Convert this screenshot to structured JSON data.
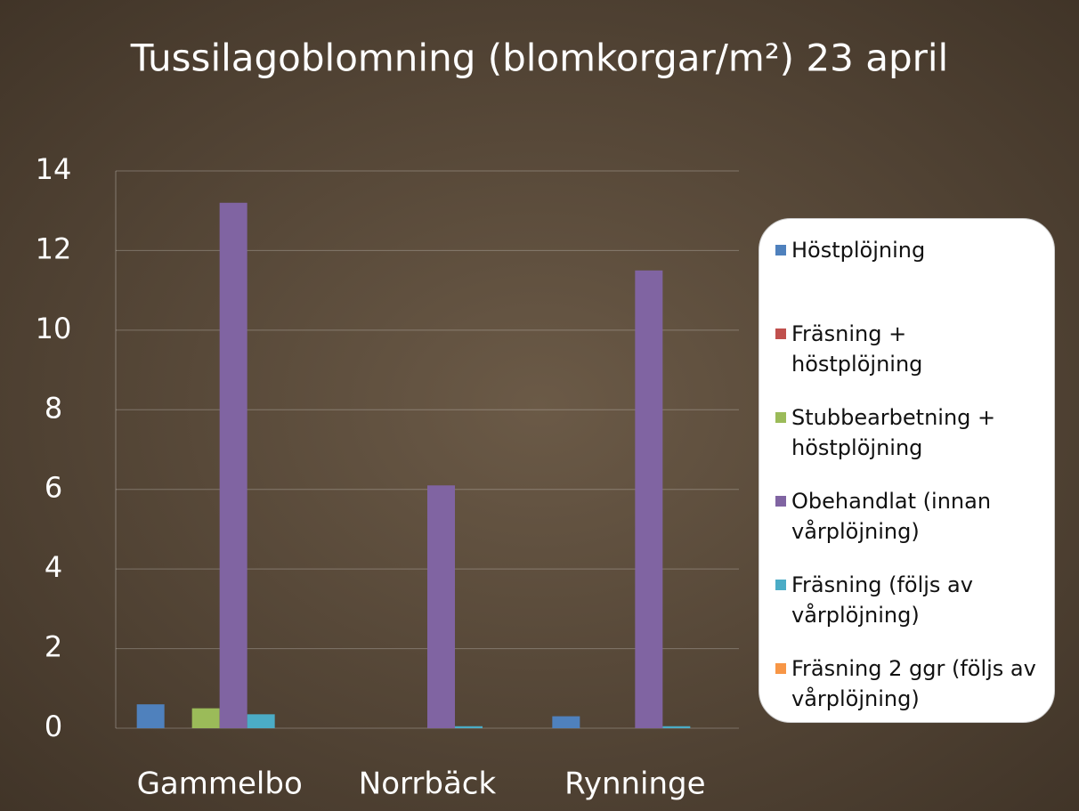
{
  "chart_data": {
    "type": "bar",
    "title": "Tussilagoblomning (blomkorgar/m²) 23 april",
    "categories": [
      "Gammelbo",
      "Norrbäck",
      "Rynninge"
    ],
    "series": [
      {
        "name": "Höstplöjning",
        "color": "#4f81bd",
        "values": [
          0.6,
          0,
          0.3
        ]
      },
      {
        "name": "Fräsning + höstplöjning",
        "color": "#c0504d",
        "values": [
          0,
          0,
          0
        ]
      },
      {
        "name": "Stubbearbetning + höstplöjning",
        "color": "#9bbb59",
        "values": [
          0.5,
          0,
          0
        ]
      },
      {
        "name": "Obehandlat (innan vårplöjning)",
        "color": "#8064a2",
        "values": [
          13.2,
          6.1,
          11.5
        ]
      },
      {
        "name": "Fräsning (följs av vårplöjning)",
        "color": "#4bacc6",
        "values": [
          0.35,
          0.05,
          0.05
        ]
      },
      {
        "name": "Fräsning 2 ggr (följs av vårplöjning)",
        "color": "#f79646",
        "values": [
          0,
          0,
          0
        ]
      }
    ],
    "ylim": [
      0,
      14
    ],
    "yticks": [
      0,
      2,
      4,
      6,
      8,
      10,
      12,
      14
    ],
    "grid": true,
    "legend": "right"
  }
}
